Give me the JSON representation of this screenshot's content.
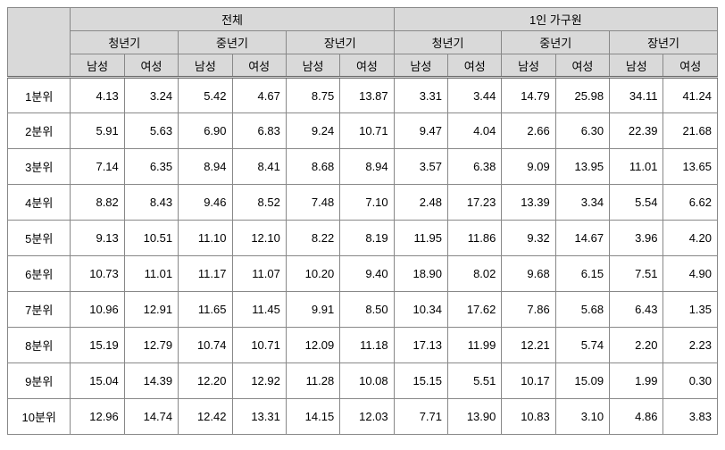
{
  "table": {
    "background_color": "#ffffff",
    "header_bg": "#d9d9d9",
    "border_color": "#888888",
    "font_size": 13,
    "top_groups": [
      "전체",
      "1인 가구원"
    ],
    "mid_groups": [
      "청년기",
      "중년기",
      "장년기",
      "청년기",
      "중년기",
      "장년기"
    ],
    "sub_headers": [
      "남성",
      "여성",
      "남성",
      "여성",
      "남성",
      "여성",
      "남성",
      "여성",
      "남성",
      "여성",
      "남성",
      "여성"
    ],
    "row_labels": [
      "1분위",
      "2분위",
      "3분위",
      "4분위",
      "5분위",
      "6분위",
      "7분위",
      "8분위",
      "9분위",
      "10분위"
    ],
    "rows": [
      [
        "4.13",
        "3.24",
        "5.42",
        "4.67",
        "8.75",
        "13.87",
        "3.31",
        "3.44",
        "14.79",
        "25.98",
        "34.11",
        "41.24"
      ],
      [
        "5.91",
        "5.63",
        "6.90",
        "6.83",
        "9.24",
        "10.71",
        "9.47",
        "4.04",
        "2.66",
        "6.30",
        "22.39",
        "21.68"
      ],
      [
        "7.14",
        "6.35",
        "8.94",
        "8.41",
        "8.68",
        "8.94",
        "3.57",
        "6.38",
        "9.09",
        "13.95",
        "11.01",
        "13.65"
      ],
      [
        "8.82",
        "8.43",
        "9.46",
        "8.52",
        "7.48",
        "7.10",
        "2.48",
        "17.23",
        "13.39",
        "3.34",
        "5.54",
        "6.62"
      ],
      [
        "9.13",
        "10.51",
        "11.10",
        "12.10",
        "8.22",
        "8.19",
        "11.95",
        "11.86",
        "9.32",
        "14.67",
        "3.96",
        "4.20"
      ],
      [
        "10.73",
        "11.01",
        "11.17",
        "11.07",
        "10.20",
        "9.40",
        "18.90",
        "8.02",
        "9.68",
        "6.15",
        "7.51",
        "4.90"
      ],
      [
        "10.96",
        "12.91",
        "11.65",
        "11.45",
        "9.91",
        "8.50",
        "10.34",
        "17.62",
        "7.86",
        "5.68",
        "6.43",
        "1.35"
      ],
      [
        "15.19",
        "12.79",
        "10.74",
        "10.71",
        "12.09",
        "11.18",
        "17.13",
        "11.99",
        "12.21",
        "5.74",
        "2.20",
        "2.23"
      ],
      [
        "15.04",
        "14.39",
        "12.20",
        "12.92",
        "11.28",
        "10.08",
        "15.15",
        "5.51",
        "10.17",
        "15.09",
        "1.99",
        "0.30"
      ],
      [
        "12.96",
        "14.74",
        "12.42",
        "13.31",
        "14.15",
        "12.03",
        "7.71",
        "13.90",
        "10.83",
        "3.10",
        "4.86",
        "3.83"
      ]
    ]
  }
}
